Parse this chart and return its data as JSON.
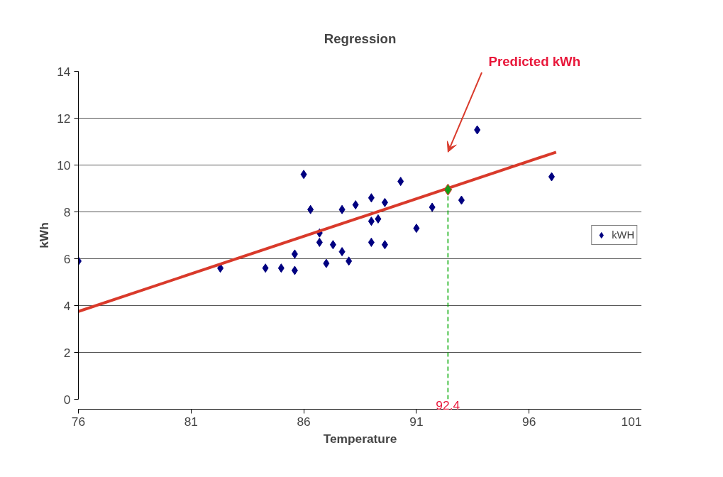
{
  "chart_data": {
    "type": "scatter",
    "title": "Regression",
    "xlabel": "Temperature",
    "ylabel": "kWh",
    "xlim": [
      76,
      101
    ],
    "xticks": [
      76,
      81,
      86,
      91,
      96,
      101
    ],
    "ylim": [
      0,
      14
    ],
    "yticks": [
      0,
      2,
      4,
      6,
      8,
      10,
      12,
      14
    ],
    "grid": "y",
    "legend": "right",
    "marker": "diamond",
    "series": [
      {
        "name": "kWH",
        "color": "#000080",
        "x": [
          76,
          82.3,
          84.3,
          85.0,
          85.6,
          85.6,
          86.0,
          86.3,
          86.7,
          86.7,
          87.0,
          87.3,
          87.7,
          87.7,
          88.0,
          88.3,
          89.0,
          89.0,
          89.0,
          89.3,
          89.6,
          89.6,
          90.3,
          91.0,
          91.7,
          93.0,
          93.7,
          97.0
        ],
        "values": [
          5.9,
          5.6,
          5.6,
          5.6,
          6.2,
          5.5,
          9.6,
          8.1,
          7.1,
          6.7,
          5.8,
          6.6,
          8.1,
          6.3,
          5.9,
          8.3,
          8.6,
          7.6,
          6.7,
          7.7,
          8.4,
          6.6,
          9.3,
          7.3,
          8.2,
          8.5,
          11.5,
          9.5
        ]
      },
      {
        "type": "line",
        "marker": "none",
        "color": "#d93a2b",
        "x": [
          76,
          97.2
        ],
        "values": [
          3.75,
          10.55
        ]
      },
      {
        "color": "#1a9a1a",
        "x": [
          92.4
        ],
        "values": [
          8.95
        ]
      }
    ],
    "ref_lines": [
      {
        "axis": "x",
        "value": 92.4,
        "label": "92.4",
        "color": "#00aa00",
        "line_style": "dashed"
      }
    ],
    "annotations": [
      "Predicted kWh"
    ]
  }
}
